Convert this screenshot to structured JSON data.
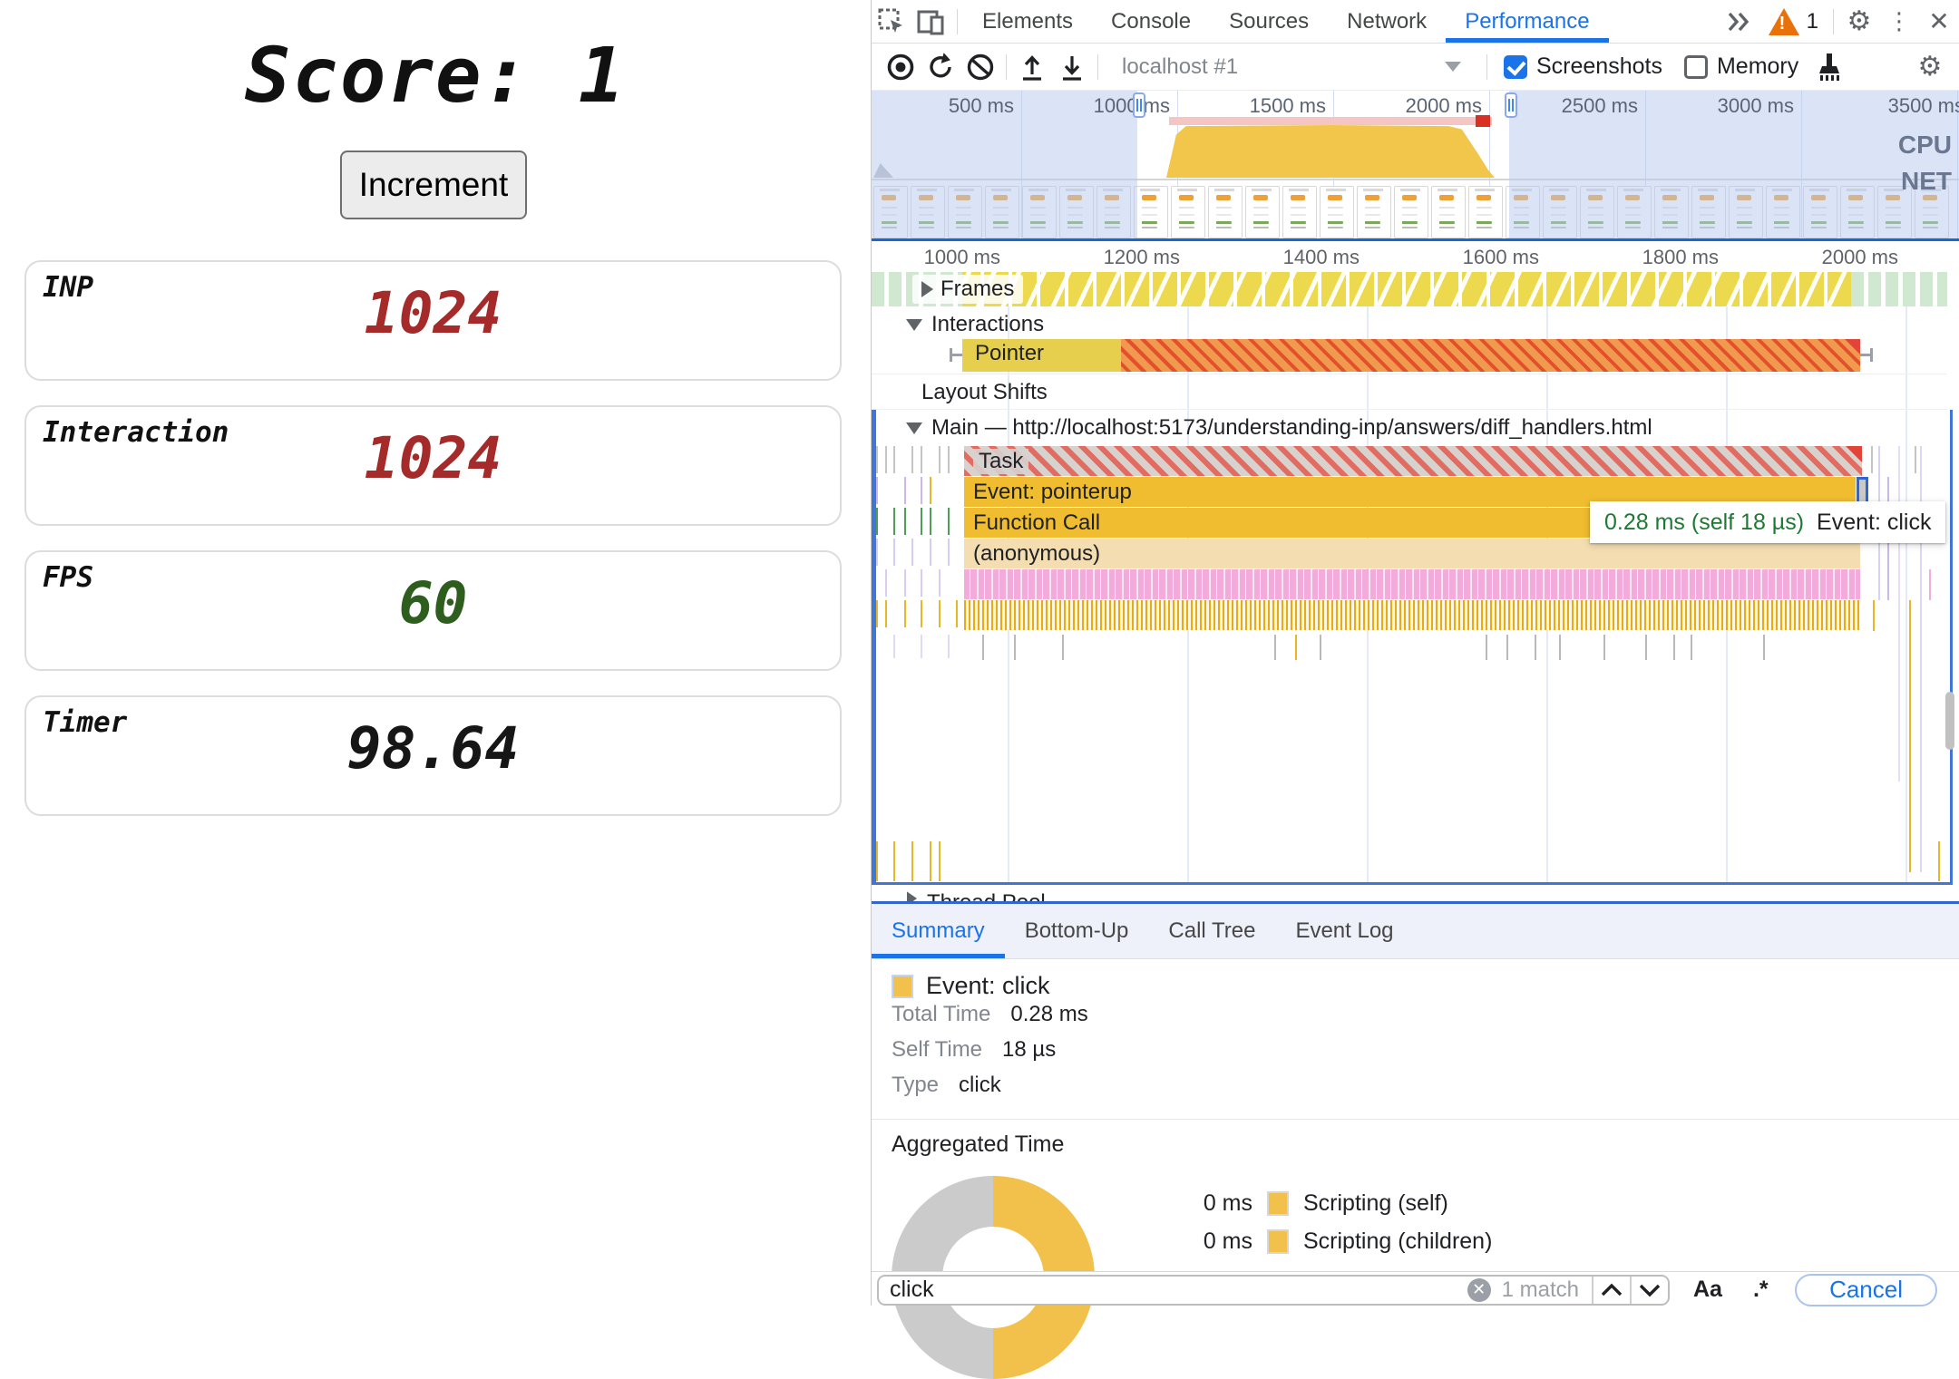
{
  "app": {
    "score": "Score: 1",
    "increment": "Increment",
    "cards": [
      {
        "label": "INP",
        "value": "1024",
        "value_color": "#a52a2a"
      },
      {
        "label": "Interaction",
        "value": "1024",
        "value_color": "#a52a2a"
      },
      {
        "label": "FPS",
        "value": "60",
        "value_color": "#2d5e1e"
      },
      {
        "label": "Timer",
        "value": "98.64",
        "value_color": "#161616"
      }
    ]
  },
  "devtools": {
    "tabs": [
      {
        "label": "Elements"
      },
      {
        "label": "Console"
      },
      {
        "label": "Sources"
      },
      {
        "label": "Network"
      },
      {
        "label": "Performance"
      }
    ],
    "active_tab": "Performance",
    "warning_count": "1",
    "toolbar": {
      "target": "localhost #1",
      "screenshots_label": "Screenshots",
      "memory_label": "Memory"
    },
    "overview": {
      "time_labels": [
        "500 ms",
        "1000 ms",
        "1500 ms",
        "2000 ms",
        "2500 ms",
        "3000 ms",
        "3500 ms"
      ],
      "cpu_label": "CPU",
      "net_label": "NET"
    },
    "timeline": {
      "ruler_labels": [
        "1000 ms",
        "1200 ms",
        "1400 ms",
        "1600 ms",
        "1800 ms",
        "2000 ms"
      ],
      "tracks": {
        "frames": "Frames",
        "interactions": "Interactions",
        "pointer": "Pointer",
        "layout_shifts": "Layout Shifts",
        "main": "Main — http://localhost:5173/understanding-inp/answers/diff_handlers.html",
        "thread_pool": "Thread Pool"
      },
      "flame_rows": {
        "task": "Task",
        "pointerup": "Event: pointerup",
        "function_call": "Function Call",
        "anonymous": "(anonymous)"
      },
      "tooltip": {
        "timing": "0.28 ms (self 18 µs)",
        "label": "Event: click"
      }
    },
    "summary": {
      "tabs": [
        {
          "label": "Summary"
        },
        {
          "label": "Bottom-Up"
        },
        {
          "label": "Call Tree"
        },
        {
          "label": "Event Log"
        }
      ],
      "active_tab": "Summary",
      "event_title": "Event: click",
      "rows": [
        {
          "label": "Total Time",
          "value": "0.28 ms"
        },
        {
          "label": "Self Time",
          "value": "18 µs"
        },
        {
          "label": "Type",
          "value": "click"
        }
      ],
      "aggregated_title": "Aggregated Time",
      "legend": [
        {
          "time": "0 ms",
          "label": "Scripting (self)"
        },
        {
          "time": "0 ms",
          "label": "Scripting (children)"
        }
      ]
    },
    "search": {
      "query": "click",
      "matches": "1 match",
      "case_label": "Aa",
      "regex_label": ".*",
      "cancel_label": "Cancel"
    },
    "colors": {
      "accent_blue": "#1a73e8",
      "scripting_yellow": "#f0bd31",
      "long_task_red": "#e2443a",
      "warning_orange": "#e8710a"
    }
  }
}
